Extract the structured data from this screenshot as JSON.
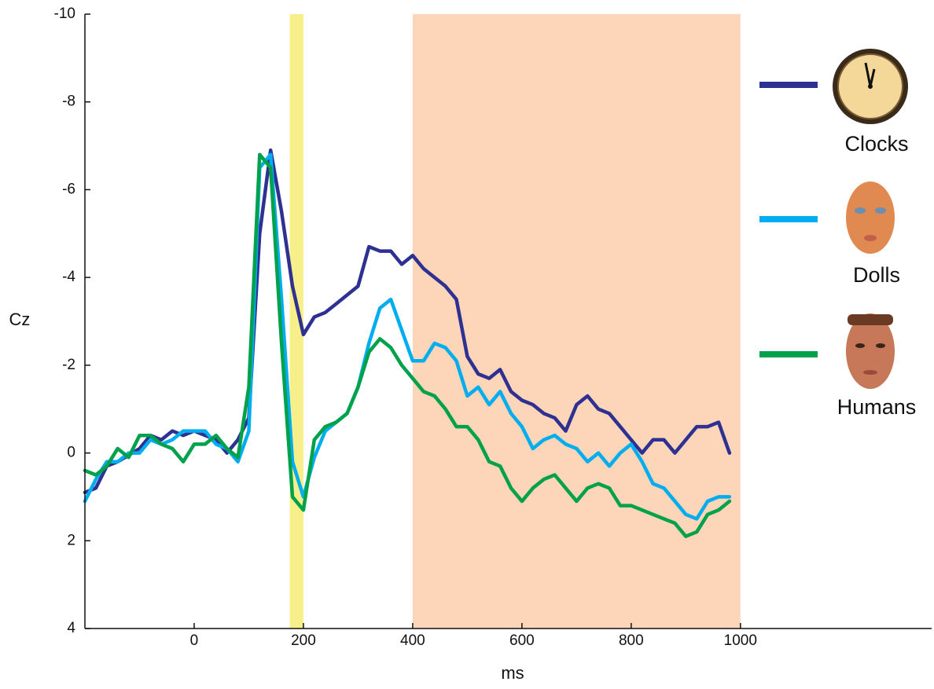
{
  "chart_data": {
    "type": "line",
    "xlabel": "ms",
    "ylabel": "Cz",
    "x": [
      -200,
      -180,
      -160,
      -140,
      -120,
      -100,
      -80,
      -60,
      -40,
      -20,
      0,
      20,
      40,
      60,
      80,
      100,
      120,
      140,
      160,
      180,
      200,
      220,
      240,
      260,
      280,
      300,
      320,
      340,
      360,
      380,
      400,
      420,
      440,
      460,
      480,
      500,
      520,
      540,
      560,
      580,
      600,
      620,
      640,
      660,
      680,
      700,
      720,
      740,
      760,
      780,
      800,
      820,
      840,
      860,
      880,
      900,
      920,
      940,
      960,
      980
    ],
    "series": [
      {
        "name": "Clocks",
        "color": "#2e3192",
        "values": [
          0.9,
          0.8,
          0.3,
          0.2,
          0.05,
          -0.1,
          -0.4,
          -0.3,
          -0.5,
          -0.4,
          -0.5,
          -0.4,
          -0.3,
          0.0,
          -0.3,
          -0.8,
          -5.0,
          -6.9,
          -5.5,
          -3.8,
          -2.7,
          -3.1,
          -3.2,
          -3.4,
          -3.6,
          -3.8,
          -4.7,
          -4.6,
          -4.6,
          -4.3,
          -4.5,
          -4.2,
          -4.0,
          -3.8,
          -3.5,
          -2.2,
          -1.8,
          -1.7,
          -1.9,
          -1.4,
          -1.2,
          -1.1,
          -0.9,
          -0.8,
          -0.5,
          -1.1,
          -1.3,
          -1.0,
          -0.9,
          -0.6,
          -0.3,
          0.0,
          -0.3,
          -0.3,
          0.0,
          -0.3,
          -0.6,
          -0.6,
          -0.7,
          0.0
        ]
      },
      {
        "name": "Dolls",
        "color": "#00aeef",
        "values": [
          1.1,
          0.6,
          0.2,
          0.2,
          0.0,
          0.0,
          -0.3,
          -0.2,
          -0.3,
          -0.5,
          -0.5,
          -0.5,
          -0.2,
          -0.1,
          0.2,
          -0.5,
          -6.5,
          -6.8,
          -3.5,
          0.2,
          1.0,
          0.1,
          -0.5,
          -0.7,
          -0.9,
          -1.5,
          -2.5,
          -3.3,
          -3.5,
          -2.8,
          -2.1,
          -2.1,
          -2.5,
          -2.4,
          -2.1,
          -1.3,
          -1.5,
          -1.1,
          -1.4,
          -0.9,
          -0.6,
          -0.1,
          -0.3,
          -0.4,
          -0.2,
          -0.1,
          0.2,
          0.0,
          0.3,
          0.0,
          -0.2,
          0.2,
          0.7,
          0.8,
          1.1,
          1.4,
          1.5,
          1.1,
          1.0,
          1.0
        ]
      },
      {
        "name": "Humans",
        "color": "#00a14b",
        "values": [
          0.4,
          0.5,
          0.3,
          -0.1,
          0.1,
          -0.4,
          -0.4,
          -0.2,
          -0.1,
          0.2,
          -0.2,
          -0.2,
          -0.4,
          -0.1,
          0.1,
          -1.5,
          -6.8,
          -6.5,
          -2.5,
          1.0,
          1.3,
          -0.3,
          -0.6,
          -0.7,
          -0.9,
          -1.5,
          -2.3,
          -2.6,
          -2.4,
          -2.0,
          -1.7,
          -1.4,
          -1.3,
          -1.0,
          -0.6,
          -0.6,
          -0.3,
          0.2,
          0.3,
          0.8,
          1.1,
          0.8,
          0.6,
          0.5,
          0.8,
          1.1,
          0.8,
          0.7,
          0.8,
          1.2,
          1.2,
          1.3,
          1.4,
          1.5,
          1.6,
          1.9,
          1.8,
          1.4,
          1.3,
          1.1
        ]
      }
    ],
    "shaded_regions": [
      {
        "xlim": [
          175,
          200
        ],
        "color": "#f7ef8a"
      },
      {
        "xlim": [
          400,
          1000
        ],
        "color": "#fdd5b8"
      }
    ],
    "xlim": [
      -200,
      1350
    ],
    "ylim": [
      4,
      -10
    ],
    "y_inverted": true,
    "xticks": [
      0,
      200,
      400,
      600,
      800,
      1000
    ],
    "yticks": [
      -10,
      -8,
      -6,
      -4,
      -2,
      0,
      2,
      4
    ],
    "grid": false
  }
}
